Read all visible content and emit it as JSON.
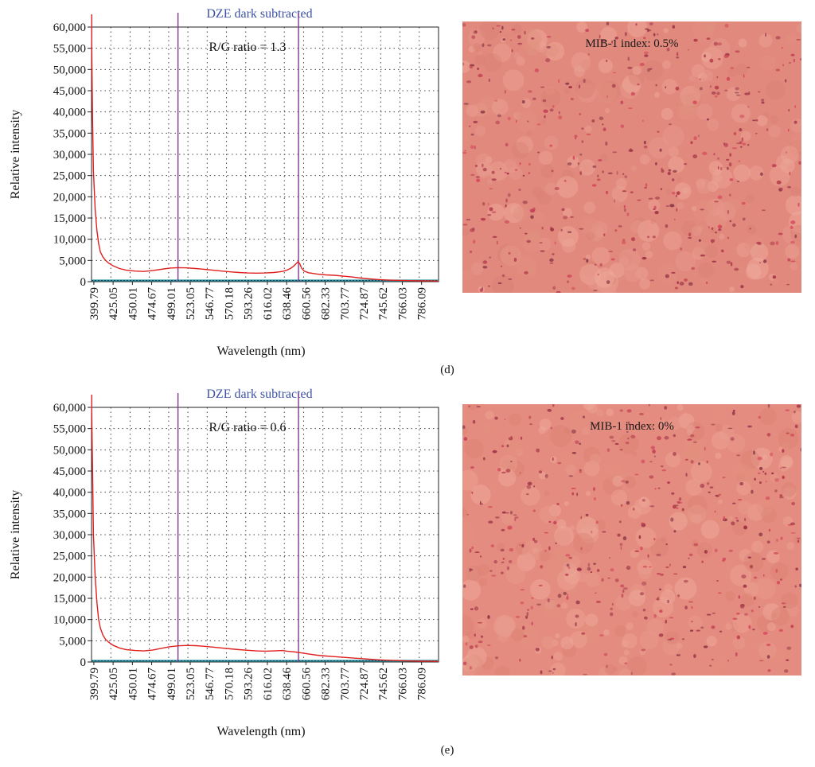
{
  "panels": [
    {
      "letter": "(d)",
      "chart": {
        "type": "line",
        "title": "DZE dark subtracted",
        "xlabel": "Wavelength (nm)",
        "ylabel": "Relative intensity",
        "ylim": [
          0,
          60000
        ],
        "xlim": [
          399.79,
          800
        ],
        "y_ticks": [
          "0",
          "5,000",
          "10,000",
          "15,000",
          "20,000",
          "25,000",
          "30,000",
          "35,000",
          "40,000",
          "45,000",
          "50,000",
          "55,000",
          "60,000"
        ],
        "x_ticks": [
          "399.79",
          "425.05",
          "450.01",
          "474.67",
          "499.01",
          "523.05",
          "546.77",
          "570.18",
          "593.26",
          "616.02",
          "638.46",
          "660.56",
          "682.33",
          "703.77",
          "724.87",
          "745.62",
          "766.03",
          "786.09"
        ],
        "markers": [
          499.5,
          638.5
        ],
        "annotation": "R/G ratio = 1.3",
        "grid": "dotted",
        "x": [
          400,
          401,
          402,
          404,
          406,
          408,
          410,
          413,
          416,
          420,
          425,
          432,
          440,
          450,
          460,
          470,
          480,
          490,
          500,
          510,
          520,
          530,
          540,
          550,
          560,
          570,
          580,
          590,
          600,
          610,
          620,
          625,
          630,
          633,
          636,
          638,
          640,
          642,
          645,
          650,
          660,
          670,
          680,
          690,
          700,
          710,
          720,
          730,
          740,
          750,
          760,
          770,
          780,
          790,
          800
        ],
        "y": [
          57000,
          38000,
          26000,
          17000,
          12000,
          9000,
          7000,
          5800,
          5000,
          4300,
          3700,
          3100,
          2700,
          2500,
          2400,
          2600,
          2900,
          3200,
          3300,
          3250,
          3100,
          2900,
          2700,
          2500,
          2300,
          2150,
          2050,
          2000,
          2050,
          2150,
          2400,
          2700,
          3200,
          3700,
          4300,
          4700,
          4200,
          3200,
          2500,
          2100,
          1800,
          1600,
          1500,
          1300,
          1100,
          850,
          650,
          500,
          400,
          320,
          260,
          220,
          190,
          160,
          140
        ]
      },
      "micrograph": {
        "label": "MIB-1 index: 0.5%",
        "base_color": "#e2897e"
      }
    },
    {
      "letter": "(e)",
      "chart": {
        "type": "line",
        "title": "DZE dark subtracted",
        "xlabel": "Wavelength (nm)",
        "ylabel": "Relative intensity",
        "ylim": [
          0,
          60000
        ],
        "xlim": [
          399.79,
          800
        ],
        "y_ticks": [
          "0",
          "5,000",
          "10,000",
          "15,000",
          "20,000",
          "25,000",
          "30,000",
          "35,000",
          "40,000",
          "45,000",
          "50,000",
          "55,000",
          "60,000"
        ],
        "x_ticks": [
          "399.79",
          "425.05",
          "450.01",
          "474.67",
          "499.01",
          "523.05",
          "546.77",
          "570.18",
          "593.26",
          "616.02",
          "638.46",
          "660.56",
          "682.33",
          "703.77",
          "724.87",
          "745.62",
          "766.03",
          "786.09"
        ],
        "markers": [
          499.5,
          638.5
        ],
        "annotation": "R/G ratio = 0.6",
        "grid": "dotted",
        "x": [
          400,
          401,
          402,
          404,
          406,
          408,
          410,
          413,
          416,
          420,
          425,
          432,
          440,
          450,
          460,
          470,
          480,
          490,
          500,
          510,
          520,
          530,
          540,
          550,
          560,
          570,
          580,
          590,
          600,
          610,
          620,
          625,
          630,
          635,
          640,
          645,
          650,
          660,
          670,
          680,
          690,
          700,
          710,
          720,
          730,
          740,
          750,
          760,
          770,
          780,
          790,
          800
        ],
        "y": [
          60000,
          45000,
          30000,
          20000,
          14000,
          10000,
          8000,
          6300,
          5300,
          4600,
          3900,
          3300,
          2900,
          2700,
          2600,
          2800,
          3200,
          3600,
          3800,
          3900,
          3850,
          3700,
          3500,
          3300,
          3100,
          2900,
          2750,
          2600,
          2550,
          2600,
          2700,
          2550,
          2450,
          2350,
          2200,
          2050,
          1900,
          1600,
          1400,
          1250,
          1100,
          950,
          800,
          650,
          520,
          420,
          340,
          280,
          230,
          190,
          160,
          140
        ]
      },
      "micrograph": {
        "label": "MIB-1 index: 0%",
        "base_color": "#e58c80"
      }
    }
  ]
}
